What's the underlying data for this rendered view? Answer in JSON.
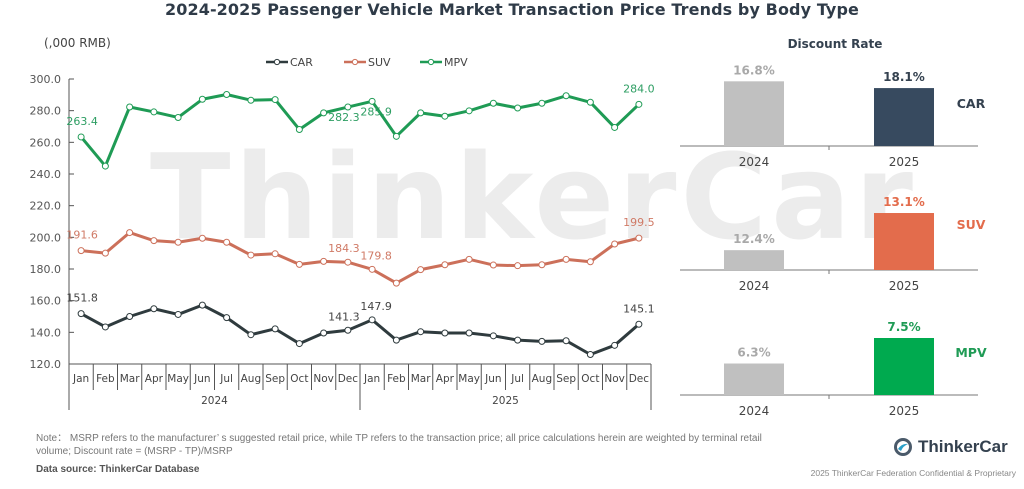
{
  "title": "2024-2025 Passenger Vehicle Market Transaction Price Trends by Body Type",
  "watermark": "ThinkerCar",
  "note": "Note： MSRP refers to the manufacturer’ s suggested retail price, while TP refers to the transaction price; all price calculations herein are weighted by terminal retail volume; Discount rate = (MSRP - TP)/MSRP",
  "source": "Data source: ThinkerCar Database",
  "logo": {
    "name": "ThinkerCar",
    "icon": "thinkercar-logo-icon"
  },
  "copyright": "2025 ThinkerCar Federation Confidential & Proprietary",
  "chart_data": [
    {
      "type": "line",
      "title": "2024-2025 Passenger Vehicle Market Transaction Price Trends by Body Type",
      "ylabel": "(,000 RMB)",
      "xlabel": "",
      "ylim": [
        120,
        300
      ],
      "yticks": [
        "120.0",
        "140.0",
        "160.0",
        "180.0",
        "200.0",
        "220.0",
        "240.0",
        "260.0",
        "280.0",
        "300.0"
      ],
      "ytick_values": [
        120,
        140,
        160,
        180,
        200,
        220,
        240,
        260,
        280,
        300
      ],
      "categories": [
        "Jan",
        "Feb",
        "Mar",
        "Apr",
        "May",
        "Jun",
        "Jul",
        "Aug",
        "Sep",
        "Oct",
        "Nov",
        "Dec",
        "Jan",
        "Feb",
        "Mar",
        "Apr",
        "May",
        "Jun",
        "Jul",
        "Aug",
        "Sep",
        "Oct",
        "Nov",
        "Dec"
      ],
      "groups": [
        {
          "label": "2024",
          "span": 12
        },
        {
          "label": "2025",
          "span": 12
        }
      ],
      "legend": "top-center",
      "grid": false,
      "series": [
        {
          "name": "CAR",
          "color": "#2f3b3e",
          "values": [
            151.8,
            143.4,
            150.0,
            154.9,
            151.3,
            157.2,
            149.3,
            138.5,
            142.2,
            132.9,
            139.6,
            141.3,
            147.9,
            135.1,
            140.4,
            139.6,
            139.6,
            137.8,
            135.1,
            134.3,
            134.7,
            126.0,
            131.8,
            145.1
          ],
          "labels": {
            "0": "151.8",
            "11": "141.3",
            "12": "147.9",
            "23": "145.1"
          }
        },
        {
          "name": "SUV",
          "color": "#cc705a",
          "values": [
            191.6,
            190.0,
            203.0,
            197.9,
            196.9,
            199.4,
            196.9,
            188.8,
            189.6,
            182.9,
            184.8,
            184.3,
            179.8,
            171.1,
            179.6,
            182.7,
            186.1,
            182.5,
            182.1,
            182.7,
            186.1,
            184.6,
            195.8,
            199.5
          ],
          "labels": {
            "0": "191.6",
            "11": "184.3",
            "12": "179.8",
            "23": "199.5"
          }
        },
        {
          "name": "MPV",
          "color": "#1f9b55",
          "values": [
            263.4,
            245.0,
            282.3,
            279.2,
            275.7,
            287.2,
            290.2,
            286.6,
            287.0,
            268.1,
            278.6,
            282.3,
            285.9,
            263.8,
            278.6,
            276.5,
            279.9,
            284.7,
            281.7,
            284.7,
            289.4,
            285.3,
            269.4,
            284.0
          ],
          "labels": {
            "0": "263.4",
            "11": "282.3",
            "12": "285.9",
            "23": "284.0"
          }
        }
      ]
    },
    {
      "type": "bar",
      "title": "Discount Rate",
      "categories": [
        "2024",
        "2025"
      ],
      "panels": [
        {
          "name": "CAR",
          "values": [
            16.8,
            18.1
          ],
          "labels": [
            "16.8%",
            "18.1%"
          ],
          "color_2024": "#c0c0c0",
          "color_2025": "#374a5f",
          "label_color": "#34414f"
        },
        {
          "name": "SUV",
          "values": [
            12.4,
            13.1
          ],
          "labels": [
            "12.4%",
            "13.1%"
          ],
          "color_2024": "#c0c0c0",
          "color_2025": "#e36c4c",
          "label_color": "#e36c4c"
        },
        {
          "name": "MPV",
          "values": [
            6.3,
            7.5
          ],
          "labels": [
            "6.3%",
            "7.5%"
          ],
          "color_2024": "#c0c0c0",
          "color_2025": "#00aa4f",
          "label_color": "#1f9b55"
        }
      ],
      "label_color_2024": "#a9a9a9"
    }
  ]
}
